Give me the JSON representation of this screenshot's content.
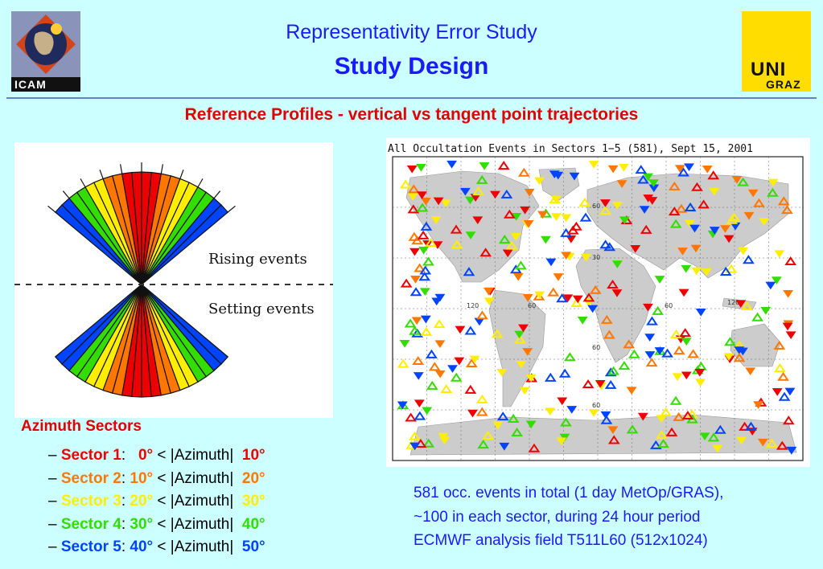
{
  "header": {
    "title": "Representativity Error Study",
    "subtitle": "Study Design",
    "slide_heading": "Reference Profiles - vertical vs tangent point trajectories"
  },
  "logos": {
    "left_text": "ICAM",
    "right_line1": "UNI",
    "right_line2": "GRAZ"
  },
  "fan_figure": {
    "rising_label": "Rising events",
    "setting_label": "Setting events"
  },
  "map_figure": {
    "title": "All Occultation Events in Sectors 1−5 (581), Sept 15, 2001",
    "grid_labels": [
      "60",
      "30",
      "120",
      "60",
      "60",
      "120",
      "60",
      "60"
    ]
  },
  "legend": {
    "title": "Azimuth Sectors",
    "dash": "–",
    "azimuth": "< |Azimuth|",
    "less": "<",
    "sectors": [
      {
        "name": "Sector 1",
        "low": "0°",
        "high": "10°",
        "color": "#ee0000"
      },
      {
        "name": "Sector 2",
        "low": "10°",
        "high": "20°",
        "color": "#ff7700"
      },
      {
        "name": "Sector 3",
        "low": "20°",
        "high": "30°",
        "color": "#ffee00"
      },
      {
        "name": "Sector 4",
        "low": "30°",
        "high": "40°",
        "color": "#33dd00"
      },
      {
        "name": "Sector 5",
        "low": "40°",
        "high": "50°",
        "color": "#0044ff"
      }
    ]
  },
  "info": {
    "line1": "581 occ. events in total (1 day MetOp/GRAS),",
    "line2": "~100 in each sector, during 24 hour period",
    "line3": "ECMWF analysis field T511L60 (512x1024)"
  },
  "colors": {
    "background": "#ccffff",
    "title_blue": "#1a1aff",
    "heading_red": "#e00000"
  }
}
